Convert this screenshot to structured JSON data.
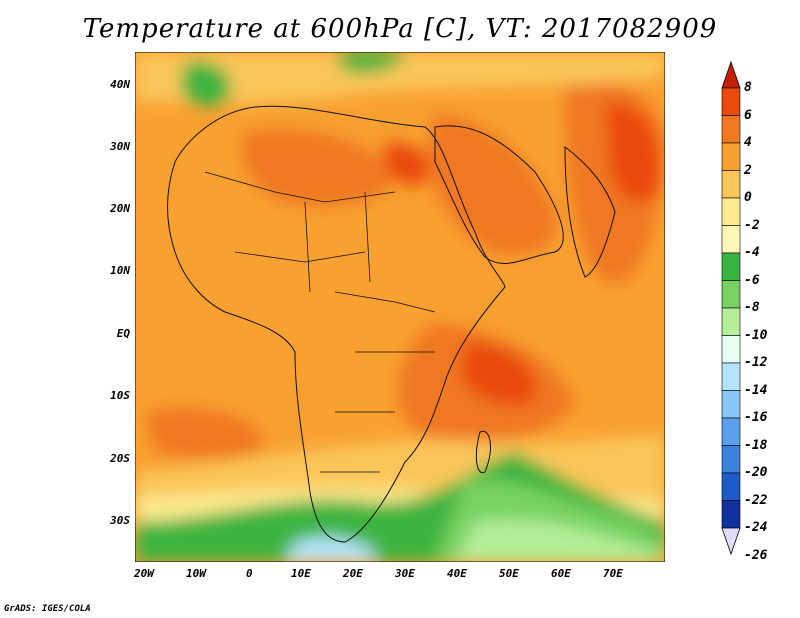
{
  "title": "Temperature at 600hPa [C], VT: 2017082909",
  "credit": "GrADS: IGES/COLA",
  "lat_labels": [
    "40N",
    "30N",
    "20N",
    "10N",
    "EQ",
    "10S",
    "20S",
    "30S"
  ],
  "lon_labels": [
    "20W",
    "10W",
    "0",
    "10E",
    "20E",
    "30E",
    "40E",
    "50E",
    "60E",
    "70E"
  ],
  "colorbar": {
    "labels": [
      "8",
      "6",
      "4",
      "2",
      "0",
      "-2",
      "-4",
      "-6",
      "-8",
      "-10",
      "-12",
      "-14",
      "-16",
      "-18",
      "-20",
      "-22",
      "-24",
      "-26"
    ],
    "colors": [
      "#c81e00",
      "#ea4a0c",
      "#f07820",
      "#f8a030",
      "#fac65a",
      "#fde98f",
      "#fdf7b8",
      "#3cb441",
      "#78d264",
      "#b4ee9a",
      "#e8fff4",
      "#b4e4fc",
      "#8ac6f6",
      "#5aa0ea",
      "#3c82dc",
      "#1e5ac8",
      "#0f32a0",
      "#081e64"
    ]
  }
}
